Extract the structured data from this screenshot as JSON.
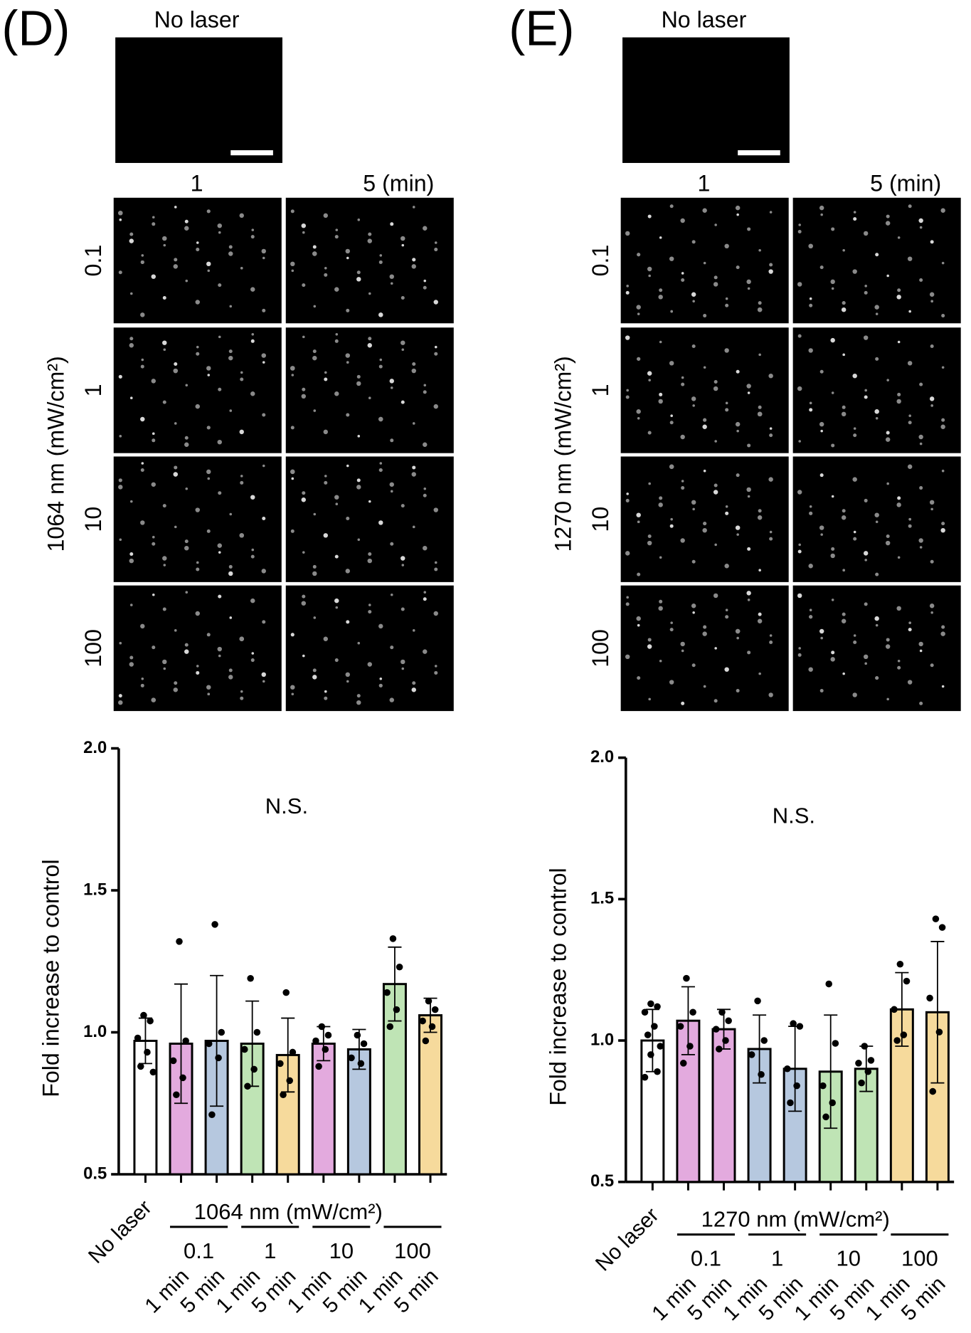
{
  "panels": [
    {
      "label": "(D)",
      "micrographs": {
        "title": "No laser",
        "columns": [
          "1",
          "5  (min)"
        ],
        "rows": [
          "0.1",
          "1",
          "10",
          "100"
        ],
        "row_axis_label": "1064 nm  (mW/cm²)"
      }
    },
    {
      "label": "(E)",
      "micrographs": {
        "title": "No laser",
        "columns": [
          "1",
          "5  (min)"
        ],
        "rows": [
          "0.1",
          "1",
          "10",
          "100"
        ],
        "row_axis_label": "1270 nm  (mW/cm²)"
      }
    }
  ],
  "chart_data": [
    {
      "type": "bar",
      "y_label": "Fold increase to control",
      "annotation": "N.S.",
      "categories": [
        "No laser",
        "1 min",
        "5 min",
        "1 min",
        "5 min",
        "1 min",
        "5 min",
        "1 min",
        "5 min"
      ],
      "group_title": "1064 nm  (mW/cm²)",
      "groups": [
        "0.1",
        "1",
        "10",
        "100"
      ],
      "colors": [
        "#ffffff",
        "#e3aade",
        "#b6c8df",
        "#bfe4b5",
        "#f6da9c",
        "#e3aade",
        "#b6c8df",
        "#bfe4b5",
        "#f6da9c"
      ],
      "values": [
        0.97,
        0.96,
        0.97,
        0.96,
        0.92,
        0.96,
        0.94,
        1.17,
        1.06
      ],
      "errors": [
        0.08,
        0.21,
        0.23,
        0.15,
        0.13,
        0.06,
        0.07,
        0.13,
        0.06
      ],
      "points": [
        [
          1.06,
          1.04,
          0.98,
          0.93,
          0.88,
          0.86
        ],
        [
          1.32,
          0.97,
          0.9,
          0.84,
          0.78
        ],
        [
          1.38,
          1.0,
          0.96,
          0.91,
          0.71
        ],
        [
          1.19,
          1.0,
          0.94,
          0.87,
          0.81
        ],
        [
          1.14,
          0.93,
          0.89,
          0.83,
          0.78
        ],
        [
          1.02,
          0.99,
          0.97,
          0.94,
          0.88
        ],
        [
          0.99,
          0.96,
          0.91,
          0.89
        ],
        [
          1.33,
          1.23,
          1.14,
          1.08,
          1.02
        ],
        [
          1.11,
          1.08,
          1.04,
          1.02,
          0.97
        ]
      ],
      "ylim": [
        0.5,
        2
      ],
      "yticks": [
        0.5,
        {
          "value": 1,
          "label": "1.0"
        },
        1.5,
        {
          "value": 2,
          "label": "2.0"
        }
      ]
    },
    {
      "type": "bar",
      "y_label": "Fold increase to control",
      "annotation": "N.S.",
      "categories": [
        "No laser",
        "1 min",
        "5 min",
        "1 min",
        "5 min",
        "1 min",
        "5 min",
        "1 min",
        "5 min"
      ],
      "group_title": "1270 nm  (mW/cm²)",
      "groups": [
        "0.1",
        "1",
        "10",
        "100"
      ],
      "colors": [
        "#ffffff",
        "#e3aade",
        "#e3aade",
        "#b6c8df",
        "#b6c8df",
        "#bfe4b5",
        "#bfe4b5",
        "#f6da9c",
        "#f6da9c"
      ],
      "values": [
        1.0,
        1.07,
        1.04,
        0.97,
        0.9,
        0.89,
        0.9,
        1.11,
        1.1
      ],
      "errors": [
        0.11,
        0.12,
        0.07,
        0.12,
        0.15,
        0.2,
        0.08,
        0.13,
        0.25
      ],
      "points": [
        [
          1.13,
          1.12,
          1.1,
          1.05,
          1.02,
          0.98,
          0.95,
          0.89,
          0.87
        ],
        [
          1.22,
          1.1,
          1.05,
          0.98,
          0.92
        ],
        [
          1.1,
          1.07,
          1.04,
          1.0,
          0.97
        ],
        [
          1.14,
          1.0,
          0.95,
          0.88
        ],
        [
          1.06,
          1.05,
          0.9,
          0.84,
          0.78
        ],
        [
          1.2,
          0.99,
          0.84,
          0.78,
          0.73
        ],
        [
          0.98,
          0.93,
          0.92,
          0.89,
          0.85
        ],
        [
          1.27,
          1.21,
          1.11,
          1.02,
          1.0
        ],
        [
          1.43,
          1.4,
          1.15,
          1.03,
          0.82
        ]
      ],
      "ylim": [
        0.5,
        2
      ],
      "yticks": [
        0.5,
        {
          "value": 1,
          "label": "1.0"
        },
        1.5,
        {
          "value": 2,
          "label": "2.0"
        }
      ]
    }
  ]
}
